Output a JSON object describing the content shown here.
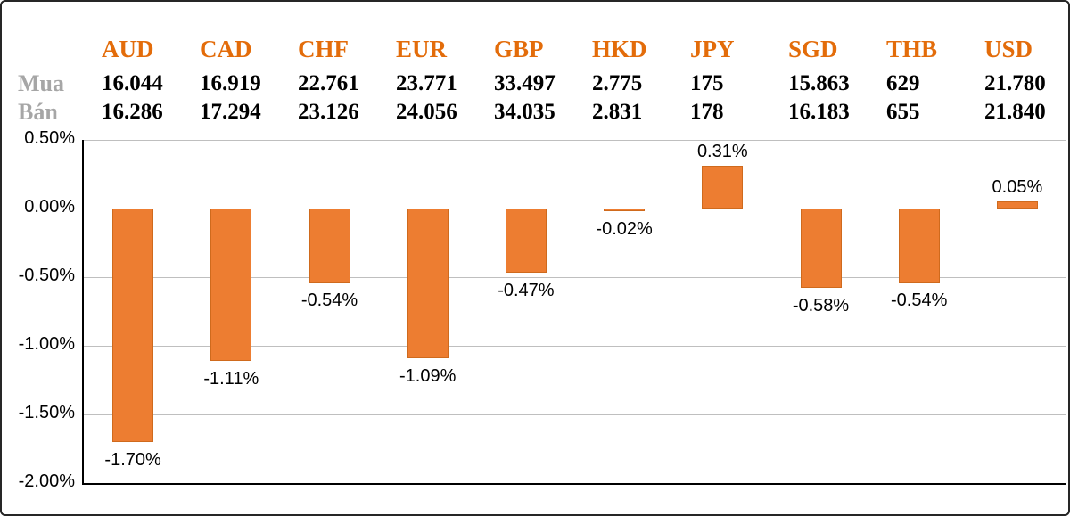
{
  "table": {
    "buy_label": "Mua",
    "sell_label": "Bán",
    "currencies": [
      "AUD",
      "CAD",
      "CHF",
      "EUR",
      "GBP",
      "HKD",
      "JPY",
      "SGD",
      "THB",
      "USD"
    ],
    "buy_values": [
      "16.044",
      "16.919",
      "22.761",
      "23.771",
      "33.497",
      "2.775",
      "175",
      "15.863",
      "629",
      "21.780"
    ],
    "sell_values": [
      "16.286",
      "17.294",
      "23.126",
      "24.056",
      "34.035",
      "2.831",
      "178",
      "16.183",
      "655",
      "21.840"
    ]
  },
  "chart_data": {
    "type": "bar",
    "title": "",
    "xlabel": "",
    "ylabel": "",
    "categories": [
      "AUD",
      "CAD",
      "CHF",
      "EUR",
      "GBP",
      "HKD",
      "JPY",
      "SGD",
      "THB",
      "USD"
    ],
    "values": [
      -1.7,
      -1.11,
      -0.54,
      -1.09,
      -0.47,
      -0.02,
      0.31,
      -0.58,
      -0.54,
      0.05
    ],
    "value_labels": [
      "-1.70%",
      "-1.11%",
      "-0.54%",
      "-1.09%",
      "-0.47%",
      "-0.02%",
      "0.31%",
      "-0.58%",
      "-0.54%",
      "0.05%"
    ],
    "ylim": [
      -2.0,
      0.5
    ],
    "y_ticks": [
      "0.50%",
      "0.00%",
      "-0.50%",
      "-1.00%",
      "-1.50%",
      "-2.00%"
    ],
    "y_tick_values": [
      0.5,
      0.0,
      -0.5,
      -1.0,
      -1.5,
      -2.0
    ],
    "grid": true,
    "legend": "none",
    "bar_color": "#ED7D31"
  },
  "colors": {
    "accent_orange": "#E36C0A",
    "bar_orange": "#ED7D31",
    "label_gray": "#A6A6A6",
    "grid_gray": "#BFBFBF"
  }
}
